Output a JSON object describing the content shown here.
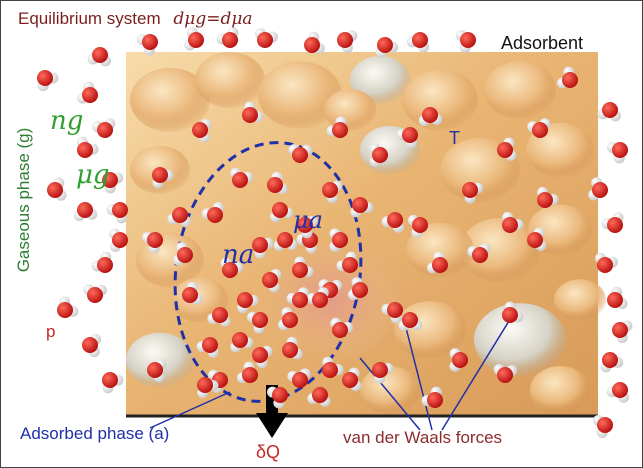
{
  "title": {
    "text": "Equilibrium system",
    "equation": "dμg=dμa",
    "color": "#7a1f1f"
  },
  "labels": {
    "adsorbent": "Adsorbent",
    "gaseous_phase": "Gaseous phase (g)",
    "n_g": "ng",
    "mu_g": "μg",
    "n_a": "na",
    "mu_a": "μa",
    "temperature": "T",
    "pressure": "p",
    "adsorbed_phase": "Adsorbed phase (a)",
    "heat": "δQ",
    "vdw": "van der Waals forces"
  },
  "colors": {
    "gas_green": "#2fa02f",
    "dark_green": "#2e7d32",
    "adsorbed_blue": "#2030a8",
    "red_text": "#c62828",
    "vdw_color": "#8b2c2c",
    "surface_light": "#f6d7a0",
    "surface_mid": "#e8b06a",
    "surface_dark": "#c98a48",
    "arrow": "#000000"
  },
  "molecules": {
    "oxygen_color": "#d81818",
    "hydrogen_color": "#e8e8e8"
  }
}
